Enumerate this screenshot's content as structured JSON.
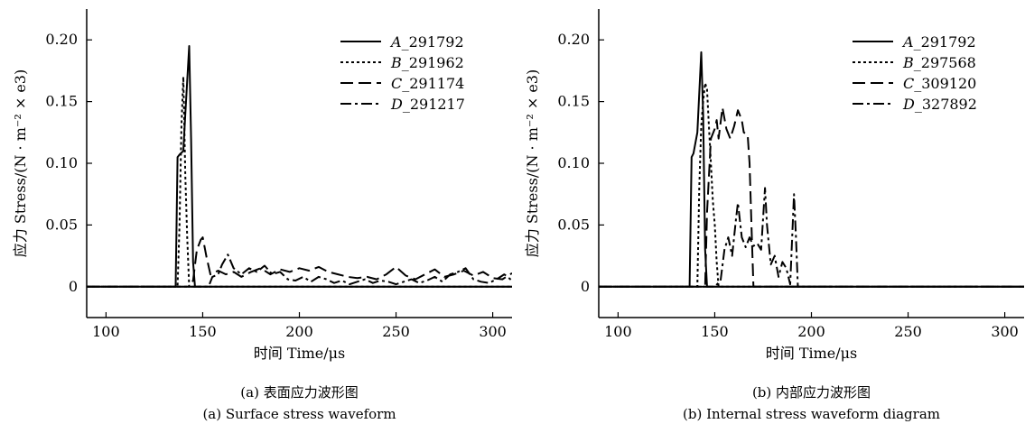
{
  "figures": [
    {
      "caption_cn": "(a) 表面应力波形图",
      "caption_en": "(a) Surface stress waveform"
    },
    {
      "caption_cn": "(b) 内部应力波形图",
      "caption_en": "(b) Internal stress waveform diagram"
    }
  ],
  "chart_data": [
    {
      "type": "line",
      "xlabel": "时间 Time/μs",
      "ylabel": "应力 Stress/(N · m⁻² × e3)",
      "xlim": [
        90,
        310
      ],
      "ylim": [
        -0.025,
        0.225
      ],
      "xticks": [
        "100",
        "150",
        "200",
        "250",
        "300"
      ],
      "yticks": [
        "0",
        "0.05",
        "0.10",
        "0.15",
        "0.20"
      ],
      "legend_position": "top-right",
      "series": [
        {
          "name": "A_291792",
          "dash": "solid",
          "points": [
            [
              90,
              0
            ],
            [
              136,
              0
            ],
            [
              137,
              0.105
            ],
            [
              138,
              0.107
            ],
            [
              140,
              0.11
            ],
            [
              141,
              0.14
            ],
            [
              143,
              0.195
            ],
            [
              144,
              0.12
            ],
            [
              145,
              0.02
            ],
            [
              146,
              0
            ],
            [
              310,
              0
            ]
          ]
        },
        {
          "name": "B_291962",
          "dash": "dotted",
          "points": [
            [
              90,
              0
            ],
            [
              137,
              0
            ],
            [
              138,
              0.05
            ],
            [
              139,
              0.13
            ],
            [
              140,
              0.17
            ],
            [
              141,
              0.09
            ],
            [
              142,
              0.04
            ],
            [
              143,
              0
            ],
            [
              310,
              0
            ]
          ]
        },
        {
          "name": "C_291174",
          "dash": "dashed",
          "points": [
            [
              90,
              0
            ],
            [
              143,
              0
            ],
            [
              145,
              0.005
            ],
            [
              147,
              0.03
            ],
            [
              149,
              0.038
            ],
            [
              150,
              0.04
            ],
            [
              152,
              0.024
            ],
            [
              154,
              0.01
            ],
            [
              158,
              0.013
            ],
            [
              162,
              0.01
            ],
            [
              166,
              0.012
            ],
            [
              170,
              0.008
            ],
            [
              175,
              0.012
            ],
            [
              180,
              0.015
            ],
            [
              185,
              0.01
            ],
            [
              190,
              0.014
            ],
            [
              195,
              0.012
            ],
            [
              200,
              0.015
            ],
            [
              205,
              0.013
            ],
            [
              210,
              0.016
            ],
            [
              215,
              0.012
            ],
            [
              220,
              0.01
            ],
            [
              225,
              0.008
            ],
            [
              230,
              0.007
            ],
            [
              235,
              0.008
            ],
            [
              240,
              0.006
            ],
            [
              245,
              0.01
            ],
            [
              250,
              0.016
            ],
            [
              255,
              0.009
            ],
            [
              260,
              0.006
            ],
            [
              265,
              0.01
            ],
            [
              270,
              0.014
            ],
            [
              275,
              0.008
            ],
            [
              280,
              0.01
            ],
            [
              285,
              0.013
            ],
            [
              290,
              0.009
            ],
            [
              295,
              0.012
            ],
            [
              300,
              0.007
            ],
            [
              305,
              0.006
            ],
            [
              310,
              0.011
            ]
          ]
        },
        {
          "name": "D_291217",
          "dash": "dashdot",
          "points": [
            [
              90,
              0
            ],
            [
              153,
              0
            ],
            [
              155,
              0.008
            ],
            [
              158,
              0.01
            ],
            [
              160,
              0.018
            ],
            [
              163,
              0.026
            ],
            [
              166,
              0.015
            ],
            [
              170,
              0.01
            ],
            [
              174,
              0.015
            ],
            [
              178,
              0.012
            ],
            [
              182,
              0.017
            ],
            [
              186,
              0.01
            ],
            [
              190,
              0.012
            ],
            [
              194,
              0.006
            ],
            [
              198,
              0.005
            ],
            [
              202,
              0.008
            ],
            [
              206,
              0.004
            ],
            [
              210,
              0.008
            ],
            [
              214,
              0.006
            ],
            [
              218,
              0.003
            ],
            [
              222,
              0.005
            ],
            [
              226,
              0.002
            ],
            [
              230,
              0.004
            ],
            [
              234,
              0.006
            ],
            [
              238,
              0.003
            ],
            [
              242,
              0.005
            ],
            [
              246,
              0.004
            ],
            [
              250,
              0.002
            ],
            [
              254,
              0.004
            ],
            [
              258,
              0.006
            ],
            [
              262,
              0.003
            ],
            [
              266,
              0.005
            ],
            [
              270,
              0.008
            ],
            [
              274,
              0.004
            ],
            [
              278,
              0.01
            ],
            [
              282,
              0.012
            ],
            [
              286,
              0.015
            ],
            [
              290,
              0.006
            ],
            [
              294,
              0.004
            ],
            [
              298,
              0.003
            ],
            [
              302,
              0.006
            ],
            [
              306,
              0.01
            ],
            [
              310,
              0.005
            ]
          ]
        }
      ]
    },
    {
      "type": "line",
      "xlabel": "时间 Time/μs",
      "ylabel": "应力 Stress/(N · m⁻² × e3)",
      "xlim": [
        90,
        310
      ],
      "ylim": [
        -0.025,
        0.225
      ],
      "xticks": [
        "100",
        "150",
        "200",
        "250",
        "300"
      ],
      "yticks": [
        "0",
        "0.05",
        "0.10",
        "0.15",
        "0.20"
      ],
      "legend_position": "top-right",
      "series": [
        {
          "name": "A_291792",
          "dash": "solid",
          "points": [
            [
              90,
              0
            ],
            [
              137,
              0
            ],
            [
              138,
              0.105
            ],
            [
              139,
              0.108
            ],
            [
              141,
              0.125
            ],
            [
              143,
              0.19
            ],
            [
              144,
              0.14
            ],
            [
              145,
              0.03
            ],
            [
              146,
              0
            ],
            [
              310,
              0
            ]
          ]
        },
        {
          "name": "B_297568",
          "dash": "dotted",
          "points": [
            [
              90,
              0
            ],
            [
              141,
              0
            ],
            [
              142,
              0.08
            ],
            [
              143,
              0.13
            ],
            [
              144,
              0.15
            ],
            [
              145,
              0.165
            ],
            [
              146,
              0.16
            ],
            [
              147,
              0.13
            ],
            [
              148,
              0.1
            ],
            [
              149,
              0.07
            ],
            [
              150,
              0.05
            ],
            [
              151,
              0.02
            ],
            [
              152,
              0
            ],
            [
              310,
              0
            ]
          ]
        },
        {
          "name": "C_309120",
          "dash": "dashed",
          "points": [
            [
              90,
              0
            ],
            [
              145,
              0
            ],
            [
              146,
              0.06
            ],
            [
              148,
              0.12
            ],
            [
              150,
              0.128
            ],
            [
              151,
              0.135
            ],
            [
              152,
              0.12
            ],
            [
              154,
              0.145
            ],
            [
              156,
              0.128
            ],
            [
              158,
              0.12
            ],
            [
              160,
              0.13
            ],
            [
              162,
              0.143
            ],
            [
              164,
              0.135
            ],
            [
              165,
              0.125
            ],
            [
              167,
              0.123
            ],
            [
              168,
              0.1
            ],
            [
              169,
              0.05
            ],
            [
              170,
              0
            ],
            [
              310,
              0
            ]
          ]
        },
        {
          "name": "D_327892",
          "dash": "dashdot",
          "points": [
            [
              90,
              0
            ],
            [
              150,
              0
            ],
            [
              153,
              0.005
            ],
            [
              155,
              0.03
            ],
            [
              157,
              0.04
            ],
            [
              159,
              0.025
            ],
            [
              161,
              0.055
            ],
            [
              162,
              0.068
            ],
            [
              164,
              0.04
            ],
            [
              166,
              0.032
            ],
            [
              168,
              0.04
            ],
            [
              170,
              0.033
            ],
            [
              172,
              0.035
            ],
            [
              174,
              0.03
            ],
            [
              176,
              0.08
            ],
            [
              177,
              0.05
            ],
            [
              179,
              0.018
            ],
            [
              181,
              0.025
            ],
            [
              183,
              0.008
            ],
            [
              185,
              0.02
            ],
            [
              187,
              0.015
            ],
            [
              189,
              0.002
            ],
            [
              191,
              0.075
            ],
            [
              192,
              0.04
            ],
            [
              193,
              0
            ],
            [
              310,
              0
            ]
          ]
        }
      ]
    }
  ]
}
